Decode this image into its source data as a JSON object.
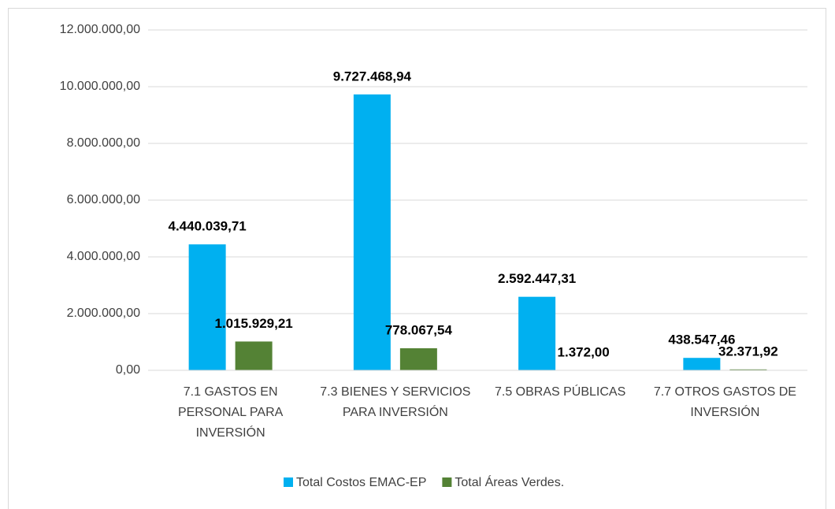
{
  "chart_data": {
    "type": "bar",
    "categories": [
      "7.1 GASTOS EN PERSONAL PARA INVERSIÓN",
      "7.3 BIENES Y SERVICIOS PARA INVERSIÓN",
      "7.5 OBRAS PÚBLICAS",
      "7.7 OTROS GASTOS DE INVERSIÓN"
    ],
    "series": [
      {
        "name": "Total Costos EMAC-EP",
        "color": "#00b0f0",
        "values": [
          4440039.71,
          9727468.94,
          2592447.31,
          438547.46
        ],
        "value_labels": [
          "4.440.039,71",
          "9.727.468,94",
          "2.592.447,31",
          "438.547,46"
        ]
      },
      {
        "name": "Total Áreas Verdes.",
        "color": "#548235",
        "values": [
          1015929.21,
          778067.54,
          1372.0,
          32371.92
        ],
        "value_labels": [
          "1.015.929,21",
          "778.067,54",
          "1.372,00",
          "32.371,92"
        ]
      }
    ],
    "ylim": [
      0,
      12000000
    ],
    "yticks": [
      {
        "value": 0,
        "label": "0,00"
      },
      {
        "value": 2000000,
        "label": "2.000.000,00"
      },
      {
        "value": 4000000,
        "label": "4.000.000,00"
      },
      {
        "value": 6000000,
        "label": "6.000.000,00"
      },
      {
        "value": 8000000,
        "label": "8.000.000,00"
      },
      {
        "value": 10000000,
        "label": "10.000.000,00"
      },
      {
        "value": 12000000,
        "label": "12.000.000,00"
      }
    ],
    "grid": true,
    "legend": "bottom"
  }
}
